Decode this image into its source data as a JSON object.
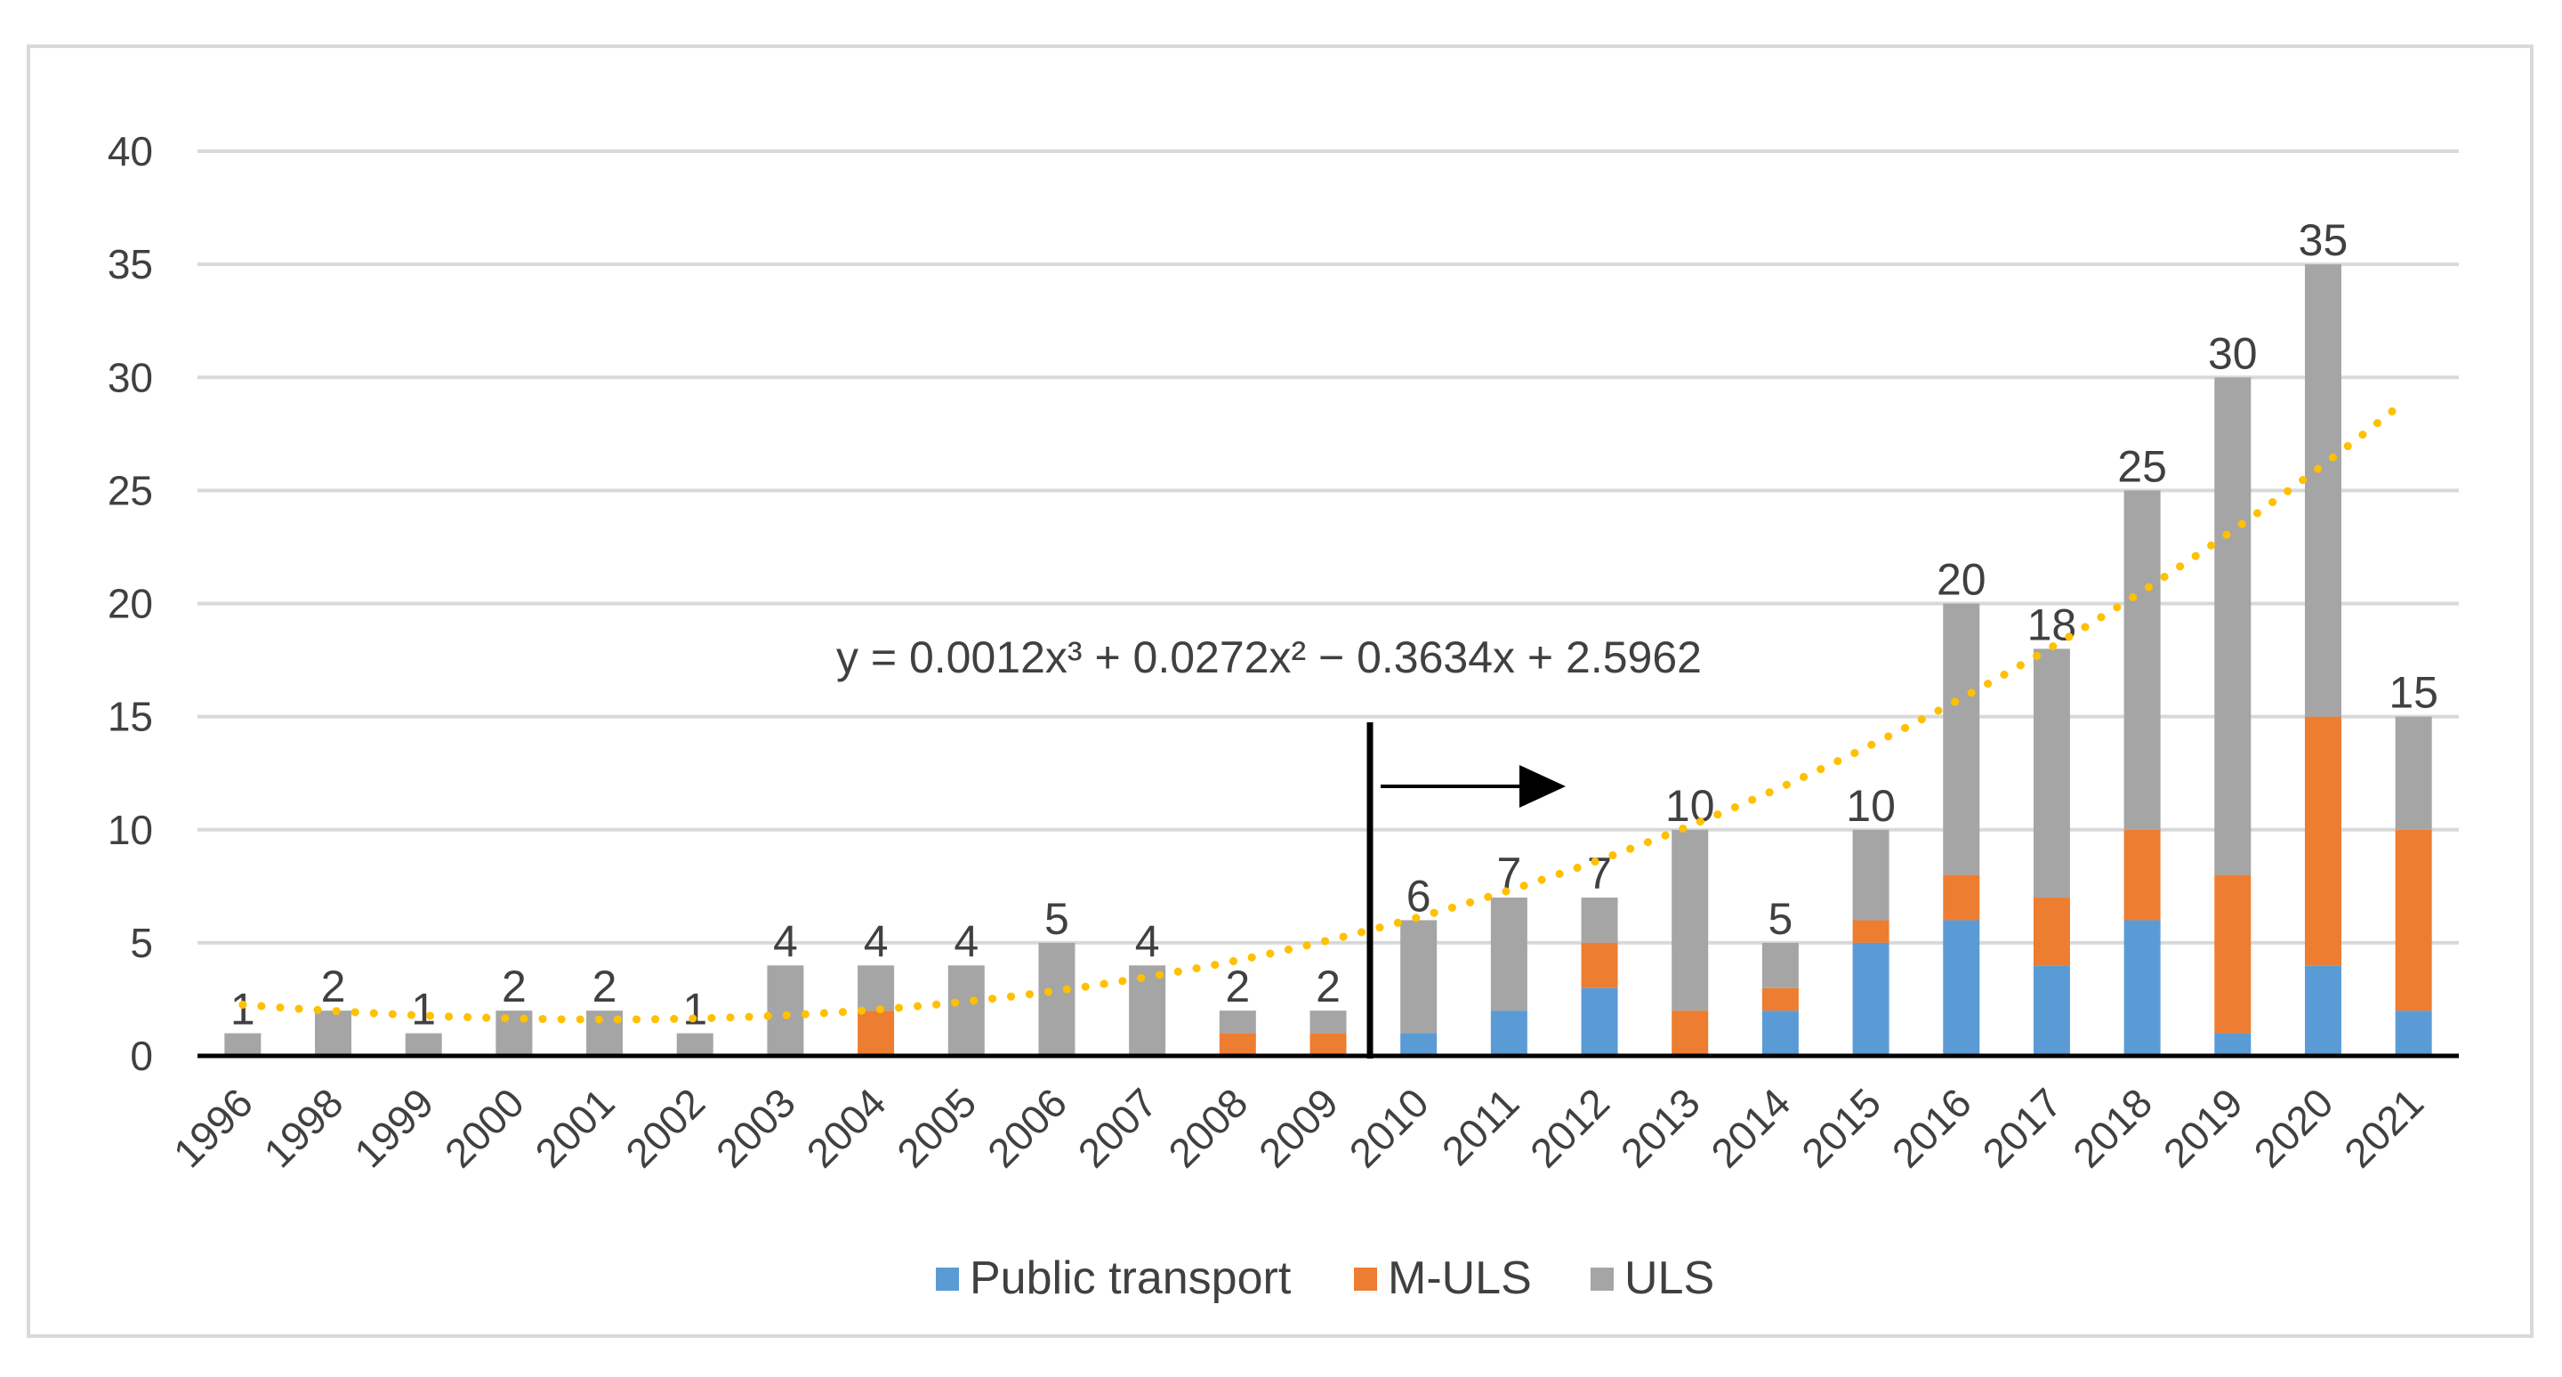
{
  "chart_data": {
    "type": "bar",
    "stacked": true,
    "title": "",
    "xlabel": "",
    "ylabel": "",
    "ylim": [
      0,
      40
    ],
    "ytick_step": 5,
    "yticks": [
      "0",
      "5",
      "10",
      "15",
      "20",
      "25",
      "30",
      "35",
      "40"
    ],
    "grid": true,
    "categories": [
      "1996",
      "1998",
      "1999",
      "2000",
      "2001",
      "2002",
      "2003",
      "2004",
      "2005",
      "2006",
      "2007",
      "2008",
      "2009",
      "2010",
      "2011",
      "2012",
      "2013",
      "2014",
      "2015",
      "2016",
      "2017",
      "2018",
      "2019",
      "2020",
      "2021"
    ],
    "series": [
      {
        "name": "Public transport",
        "color": "#5B9BD5",
        "values": [
          0,
          0,
          0,
          0,
          0,
          0,
          0,
          0,
          0,
          0,
          0,
          0,
          0,
          1,
          2,
          3,
          0,
          2,
          5,
          6,
          4,
          6,
          1,
          4,
          2
        ]
      },
      {
        "name": "M-ULS",
        "color": "#ED7D31",
        "values": [
          0,
          0,
          0,
          0,
          0,
          0,
          0,
          2,
          0,
          0,
          0,
          1,
          1,
          0,
          0,
          2,
          2,
          1,
          1,
          2,
          3,
          4,
          7,
          11,
          8
        ]
      },
      {
        "name": "ULS",
        "color": "#A5A5A5",
        "values": [
          1,
          2,
          1,
          2,
          2,
          1,
          4,
          2,
          4,
          5,
          4,
          1,
          1,
          5,
          5,
          2,
          8,
          2,
          4,
          12,
          11,
          15,
          22,
          20,
          5
        ]
      }
    ],
    "totals": [
      1,
      2,
      1,
      2,
      2,
      1,
      4,
      4,
      4,
      5,
      4,
      2,
      2,
      6,
      7,
      7,
      10,
      5,
      10,
      20,
      18,
      25,
      30,
      35,
      15
    ],
    "trendline": {
      "type": "polynomial",
      "order": 3,
      "color": "#FFC000",
      "coefficients": [
        0.0012,
        0.0272,
        -0.3634,
        2.5962
      ],
      "equation": "y = 0.0012x³ + 0.0272x² − 0.3634x + 2.5962"
    },
    "annotation": {
      "type": "vertical-line-with-arrow",
      "between_categories": [
        "2009",
        "2010"
      ],
      "arrow_direction": "right"
    },
    "legend": {
      "position": "bottom",
      "items": [
        "Public transport",
        "M-ULS",
        "ULS"
      ]
    }
  }
}
